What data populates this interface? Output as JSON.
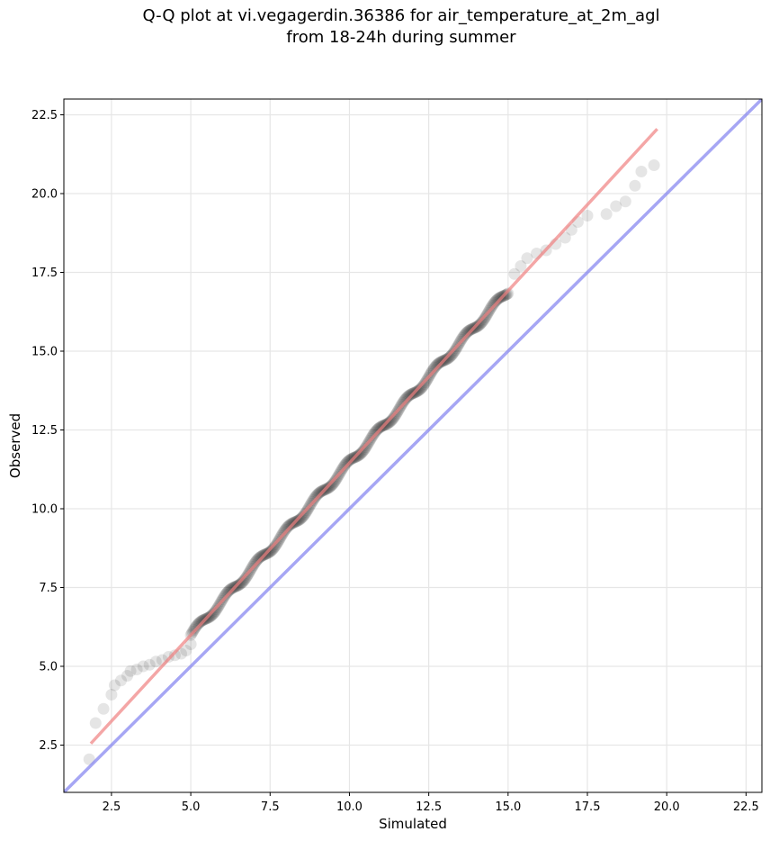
{
  "chart_data": {
    "type": "scatter",
    "title_line1": "Q-Q plot at vi.vegagerdin.36386 for air_temperature_at_2m_agl",
    "title_line2": "from 18-24h during summer",
    "xlabel": "Simulated",
    "ylabel": "Observed",
    "xlim": [
      1.0,
      23.0
    ],
    "ylim": [
      1.0,
      23.0
    ],
    "xticks": [
      "2.5",
      "5.0",
      "7.5",
      "10.0",
      "12.5",
      "15.0",
      "17.5",
      "20.0",
      "22.5"
    ],
    "yticks": [
      "2.5",
      "5.0",
      "7.5",
      "10.0",
      "12.5",
      "15.0",
      "17.5",
      "20.0",
      "22.5"
    ],
    "grid": true,
    "colors": {
      "points": "#000000",
      "fit_line": "#f08080",
      "identity_line": "#8080f0",
      "grid": "#e6e6e6"
    },
    "fit_line": {
      "x": [
        1.85,
        19.7
      ],
      "y": [
        2.55,
        22.05
      ]
    },
    "identity_line": {
      "x": [
        1.0,
        23.0
      ],
      "y": [
        1.0,
        23.0
      ]
    },
    "quantiles": {
      "sparse_points": [
        [
          1.8,
          2.05
        ],
        [
          2.0,
          3.2
        ],
        [
          2.25,
          3.65
        ],
        [
          2.5,
          4.1
        ],
        [
          2.6,
          4.4
        ],
        [
          2.8,
          4.55
        ],
        [
          3.0,
          4.7
        ],
        [
          3.1,
          4.85
        ],
        [
          3.3,
          4.9
        ],
        [
          3.5,
          5.0
        ],
        [
          3.7,
          5.05
        ],
        [
          3.9,
          5.15
        ],
        [
          4.1,
          5.2
        ],
        [
          4.3,
          5.3
        ],
        [
          4.5,
          5.35
        ],
        [
          4.7,
          5.4
        ],
        [
          4.85,
          5.5
        ],
        [
          5.0,
          5.7
        ],
        [
          15.2,
          17.45
        ],
        [
          15.4,
          17.7
        ],
        [
          15.6,
          17.95
        ],
        [
          15.9,
          18.1
        ],
        [
          16.2,
          18.2
        ],
        [
          16.5,
          18.4
        ],
        [
          16.8,
          18.6
        ],
        [
          17.0,
          18.85
        ],
        [
          17.2,
          19.1
        ],
        [
          17.5,
          19.3
        ],
        [
          18.1,
          19.35
        ],
        [
          18.4,
          19.6
        ],
        [
          18.7,
          19.75
        ],
        [
          19.0,
          20.25
        ],
        [
          19.2,
          20.7
        ],
        [
          19.6,
          20.9
        ]
      ],
      "dense_range": {
        "x": [
          5.0,
          15.0
        ],
        "y": [
          5.7,
          17.2
        ]
      }
    }
  }
}
